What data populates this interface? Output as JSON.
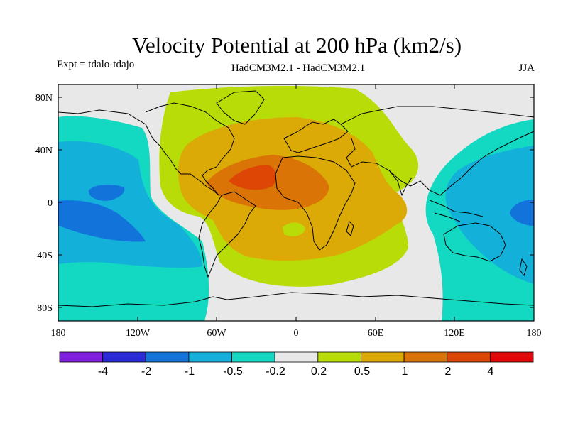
{
  "header": {
    "title": "Velocity Potential at 200 hPa (km2/s)",
    "experiment": "Expt = tdalo-tdajo",
    "models": "HadCM3M2.1 - HadCM3M2.1",
    "season": "JJA"
  },
  "axes": {
    "lat_ticks": [
      "80N",
      "40N",
      "0",
      "40S",
      "80S"
    ],
    "lon_ticks": [
      "180",
      "120W",
      "60W",
      "0",
      "60E",
      "120E",
      "180"
    ]
  },
  "colorbar": {
    "colors": [
      "#7f1fdf",
      "#2a2ad9",
      "#1274db",
      "#13b1d9",
      "#13d8c2",
      "#e8e8e8",
      "#b8dc08",
      "#dcaa07",
      "#da7406",
      "#dd4605",
      "#e00808"
    ],
    "labels": [
      "-4",
      "-2",
      "-1",
      "-0.5",
      "-0.2",
      "0.2",
      "0.5",
      "1",
      "2",
      "4"
    ]
  }
}
